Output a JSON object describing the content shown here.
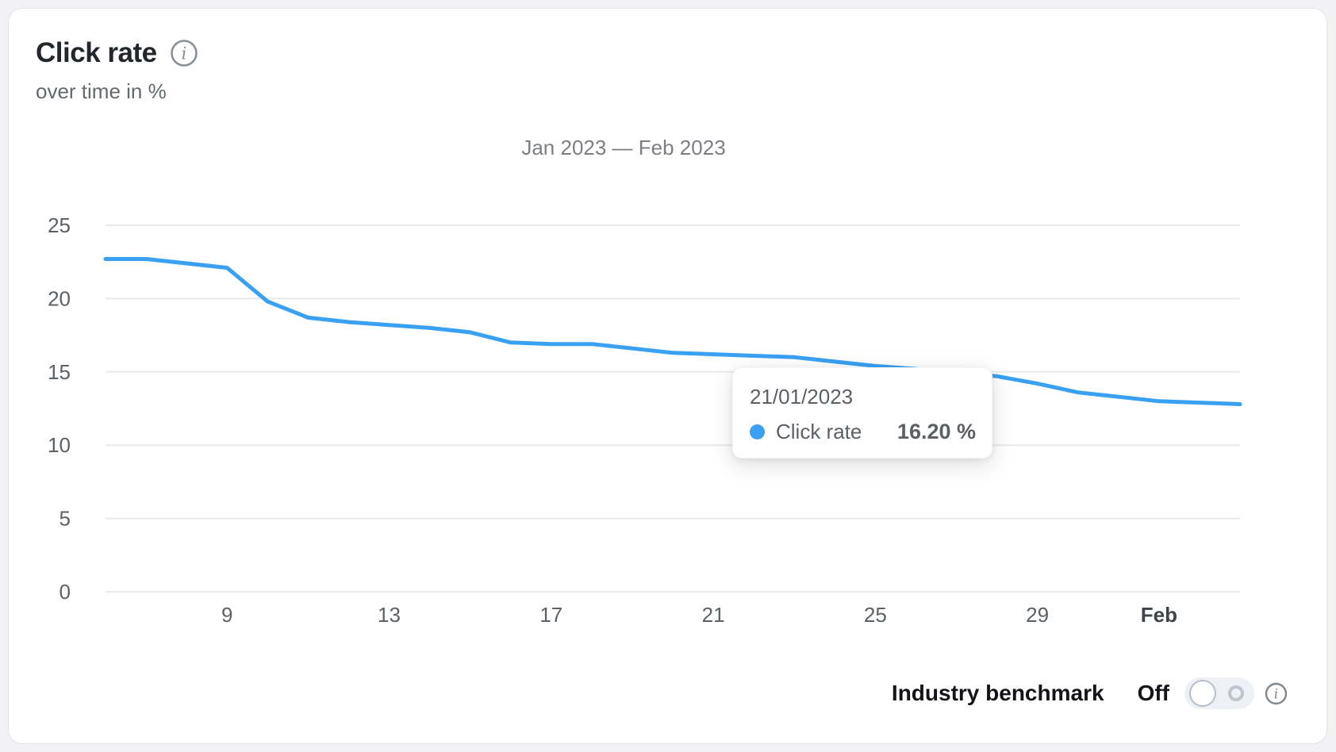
{
  "header": {
    "title": "Click rate",
    "subtitle": "over time in %"
  },
  "chart": {
    "period_title": "Jan 2023 — Feb 2023"
  },
  "chart_data": {
    "type": "line",
    "title": "Jan 2023 — Feb 2023",
    "xlabel": "",
    "ylabel": "Click rate over time in %",
    "ylim": [
      0,
      25
    ],
    "grid": "horizontal",
    "legend_position": "none",
    "x": [
      "06/01/2023",
      "07/01/2023",
      "08/01/2023",
      "09/01/2023",
      "10/01/2023",
      "11/01/2023",
      "12/01/2023",
      "13/01/2023",
      "14/01/2023",
      "15/01/2023",
      "16/01/2023",
      "17/01/2023",
      "18/01/2023",
      "19/01/2023",
      "20/01/2023",
      "21/01/2023",
      "22/01/2023",
      "23/01/2023",
      "24/01/2023",
      "25/01/2023",
      "26/01/2023",
      "27/01/2023",
      "28/01/2023",
      "29/01/2023",
      "30/01/2023",
      "31/01/2023",
      "01/02/2023",
      "02/02/2023",
      "03/02/2023"
    ],
    "series": [
      {
        "name": "Click rate",
        "color": "#3aa0f2",
        "values": [
          22.7,
          22.7,
          22.4,
          22.1,
          19.8,
          18.7,
          18.4,
          18.2,
          18.0,
          17.7,
          17.0,
          16.9,
          16.9,
          16.6,
          16.3,
          16.2,
          16.1,
          16.0,
          15.7,
          15.4,
          15.2,
          14.9,
          14.7,
          14.2,
          13.6,
          13.3,
          13.0,
          12.9,
          12.8
        ]
      }
    ],
    "y_ticks": [
      0,
      5,
      10,
      15,
      20,
      25
    ],
    "x_ticks": [
      {
        "label": "9",
        "index": 3
      },
      {
        "label": "13",
        "index": 7
      },
      {
        "label": "17",
        "index": 11
      },
      {
        "label": "21",
        "index": 15
      },
      {
        "label": "25",
        "index": 19
      },
      {
        "label": "29",
        "index": 23
      },
      {
        "label": "Feb",
        "index": 26,
        "bold": true
      }
    ],
    "colors": {
      "line": "#3aa0f2",
      "grid": "#eaeaec",
      "axis_text": "#5c6166"
    }
  },
  "tooltip": {
    "date": "21/01/2023",
    "series_label": "Click rate",
    "value": "16.20 %"
  },
  "footer": {
    "benchmark_label": "Industry benchmark",
    "state_label": "Off"
  }
}
